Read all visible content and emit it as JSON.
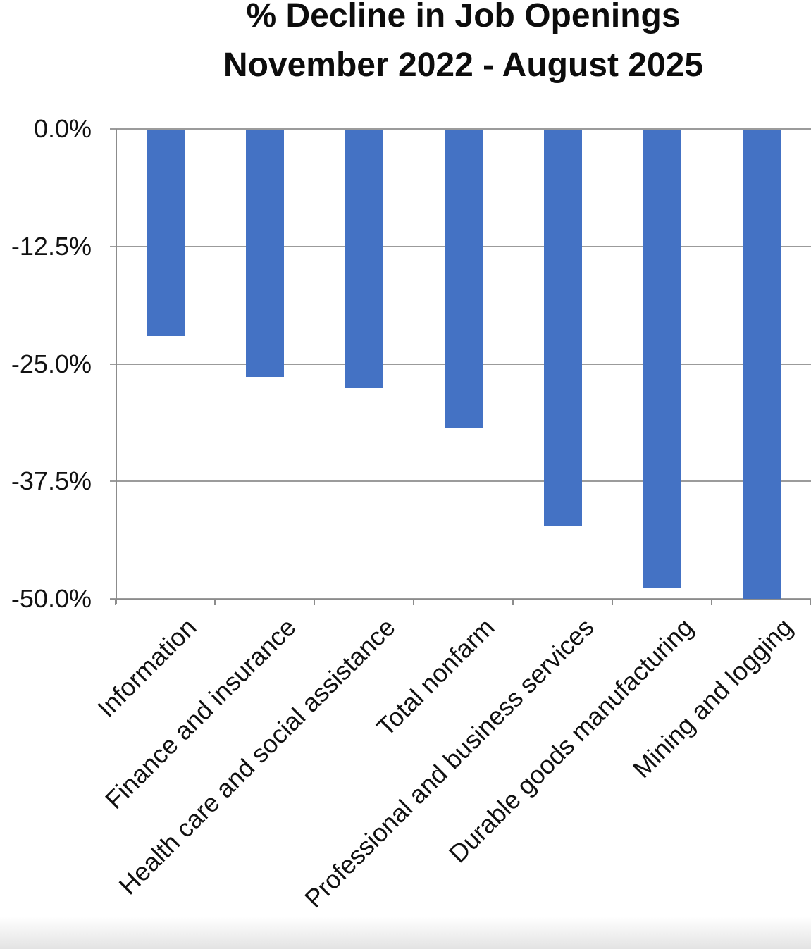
{
  "title": {
    "line1": "% Decline in Job Openings",
    "line2": "November 2022 - August 2025"
  },
  "chart_data": {
    "type": "bar",
    "orientation": "vertical",
    "title": "% Decline in Job Openings November 2022 - August 2025",
    "categories": [
      "Information",
      "Finance and insurance",
      "Health care and social assistance",
      "Total nonfarm",
      "Professional and business services",
      "Durable goods manufacturing",
      "Mining and logging"
    ],
    "values": [
      -22.0,
      -26.3,
      -27.5,
      -31.8,
      -42.2,
      -48.7,
      -49.9
    ],
    "xlabel": "",
    "ylabel": "",
    "ylim": [
      -50,
      0
    ],
    "yticks": [
      0,
      -12.5,
      -25,
      -37.5,
      -50
    ],
    "ytick_labels": [
      "0.0%",
      "-12.5%",
      "-25.0%",
      "-37.5%",
      "-50.0%"
    ],
    "grid": true,
    "legend": false,
    "bar_color": "#4472c4",
    "gridline_color": "#9b9b9b",
    "axis_color": "#8c8c8c",
    "text_color": "#111111"
  }
}
